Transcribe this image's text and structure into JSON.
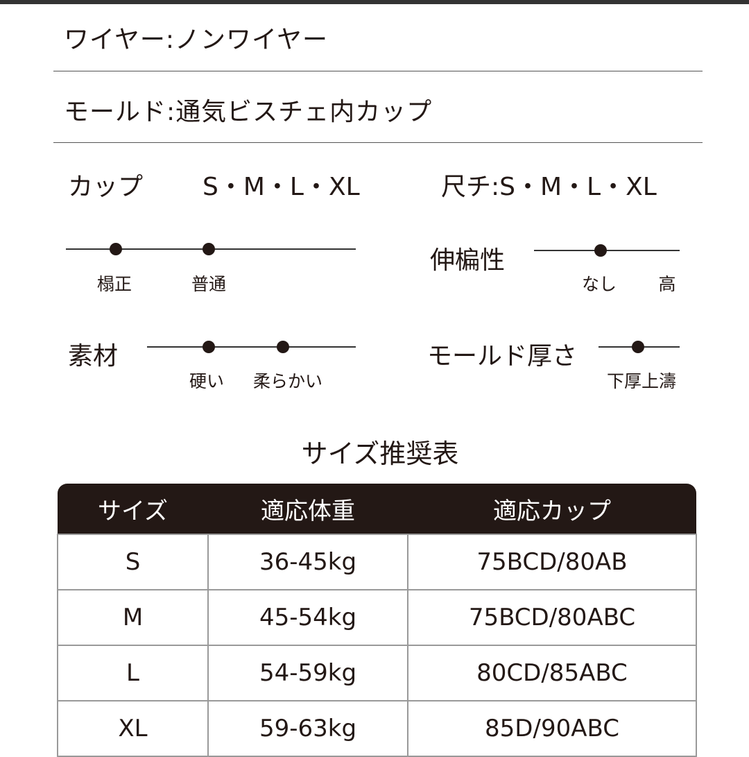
{
  "specs": [
    {
      "text": "ワイヤー:ノンワイヤー"
    },
    {
      "text": "モールド:通気ビスチェ内カップ"
    }
  ],
  "cup": {
    "label": "カップ",
    "sizes": "S・M・L・XL"
  },
  "size_range": {
    "label": "尺チ:S・M・L・XL"
  },
  "scales": [
    {
      "label": "",
      "ticks": [
        "榻正",
        "普通"
      ],
      "selected": [
        "榻正",
        "普通"
      ]
    },
    {
      "label": "伸楄性",
      "ticks": [
        "なし",
        "高"
      ],
      "selected": [
        "なし"
      ]
    },
    {
      "label": "素材",
      "ticks": [
        "硬い",
        "柔らかい"
      ],
      "selected": [
        "硬い",
        "柔らかい"
      ]
    },
    {
      "label": "モールド厚さ",
      "ticks": [
        "下厚上濤"
      ],
      "selected": [
        "下厚上濤"
      ]
    }
  ],
  "table": {
    "title": "サイズ推奨表",
    "headers": [
      "サイズ",
      "適応体重",
      "適応カップ"
    ],
    "rows": [
      [
        "S",
        "36-45kg",
        "75BCD/80AB"
      ],
      [
        "M",
        "45-54kg",
        "75BCD/80ABC"
      ],
      [
        "L",
        "54-59kg",
        "80CD/85ABC"
      ],
      [
        "XL",
        "59-63kg",
        "85D/90ABC"
      ]
    ]
  },
  "colors": {
    "dark": "#231815"
  }
}
